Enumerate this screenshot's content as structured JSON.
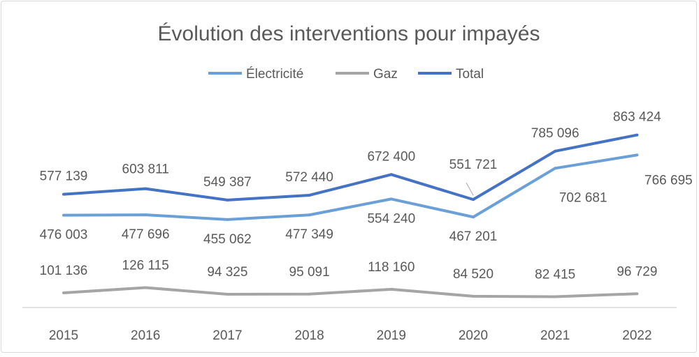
{
  "chart_data": {
    "type": "line",
    "title": "Évolution des interventions pour impayés",
    "categories": [
      "2015",
      "2016",
      "2017",
      "2018",
      "2019",
      "2020",
      "2021",
      "2022"
    ],
    "series": [
      {
        "name": "Électricité",
        "color": "#6a9fd8",
        "values": [
          476003,
          477696,
          455062,
          477349,
          554240,
          467201,
          702681,
          766695
        ],
        "labels": [
          "476 003",
          "477 696",
          "455 062",
          "477 349",
          "554 240",
          "467 201",
          "702 681",
          "766 695"
        ]
      },
      {
        "name": "Gaz",
        "color": "#a5a5a5",
        "values": [
          101136,
          126115,
          94325,
          95091,
          118160,
          84520,
          82415,
          96729
        ],
        "labels": [
          "101 136",
          "126 115",
          "94 325",
          "95 091",
          "118 160",
          "84 520",
          "82 415",
          "96 729"
        ]
      },
      {
        "name": "Total",
        "color": "#4472c4",
        "values": [
          577139,
          603811,
          549387,
          572440,
          672400,
          551721,
          785096,
          863424
        ],
        "labels": [
          "577 139",
          "603 811",
          "549 387",
          "572 440",
          "672 400",
          "551 721",
          "785 096",
          "863 424"
        ]
      }
    ],
    "legend": "top",
    "grid": false,
    "y_axis_visible": false
  }
}
